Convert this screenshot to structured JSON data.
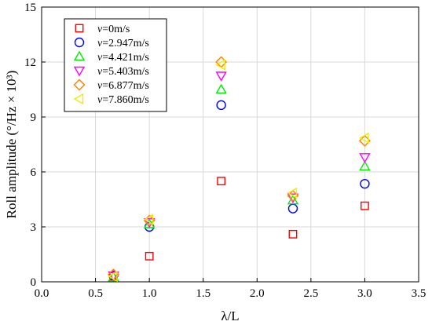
{
  "chart_data": {
    "type": "scatter",
    "title": "",
    "xlabel": "λ/L",
    "ylabel": "Roll amplitude (°/Hz × 10³)",
    "xlim": [
      0.0,
      3.5
    ],
    "ylim": [
      0,
      15
    ],
    "xticks": [
      0.0,
      0.5,
      1.0,
      1.5,
      2.0,
      2.5,
      3.0,
      3.5
    ],
    "xtick_labels": [
      "0.0",
      "0.5",
      "1.0",
      "1.5",
      "2.0",
      "2.5",
      "3.0",
      "3.5"
    ],
    "yticks": [
      0,
      3,
      6,
      9,
      12,
      15
    ],
    "ytick_labels": [
      "0",
      "3",
      "6",
      "9",
      "12",
      "15"
    ],
    "grid": true,
    "legend_position": "top-left",
    "series": [
      {
        "name": "v=0m/s",
        "marker": "square",
        "color": "#ff0000",
        "x": [
          0.667,
          1.0,
          1.667,
          2.333,
          3.0
        ],
        "y": [
          0.3,
          1.4,
          5.5,
          2.6,
          4.15
        ]
      },
      {
        "name": "v=2.947m/s",
        "marker": "circle",
        "color": "#0000ff",
        "x": [
          0.667,
          1.0,
          1.667,
          2.333,
          3.0
        ],
        "y": [
          0.35,
          3.0,
          9.65,
          4.0,
          5.35
        ]
      },
      {
        "name": "v=4.421m/s",
        "marker": "triangle-up",
        "color": "#00ee00",
        "x": [
          0.667,
          1.0,
          1.667,
          2.333,
          3.0
        ],
        "y": [
          0.25,
          3.15,
          10.5,
          4.45,
          6.3
        ]
      },
      {
        "name": "v=5.403m/s",
        "marker": "triangle-down",
        "color": "#ff00ff",
        "x": [
          0.667,
          1.0,
          1.667,
          2.333,
          3.0
        ],
        "y": [
          0.35,
          3.25,
          11.25,
          4.6,
          6.8
        ]
      },
      {
        "name": "v=6.877m/s",
        "marker": "diamond",
        "color": "#ff8000",
        "x": [
          0.667,
          1.0,
          1.667,
          2.333,
          3.0
        ],
        "y": [
          0.4,
          3.35,
          12.0,
          4.7,
          7.7
        ]
      },
      {
        "name": "v=7.860m/s",
        "marker": "triangle-left",
        "color": "#eeee00",
        "x": [
          0.667,
          1.0,
          1.667,
          2.333,
          3.0
        ],
        "y": [
          0.3,
          3.4,
          11.85,
          4.85,
          7.85
        ]
      }
    ]
  }
}
